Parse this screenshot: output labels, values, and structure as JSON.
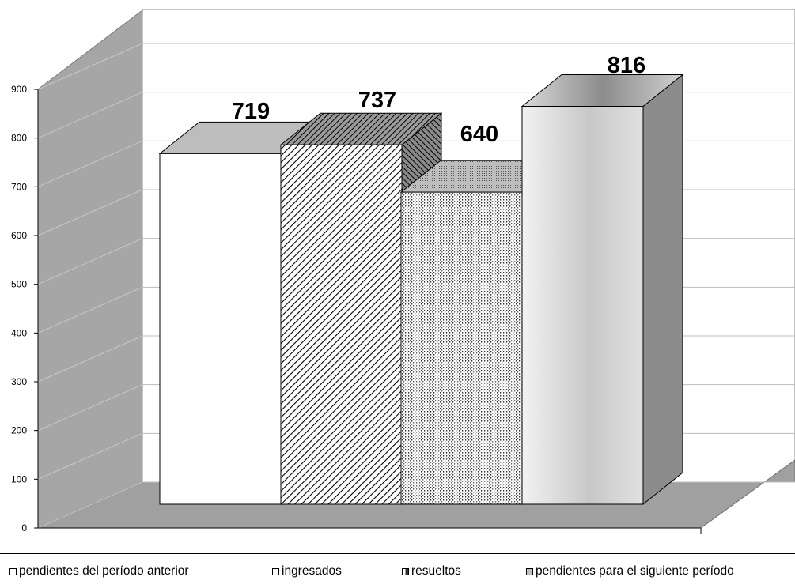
{
  "chart_data": {
    "type": "bar",
    "categories": [
      "pendientes del período anterior",
      "ingresados",
      "resueltos",
      "pendientes para el siguiente período"
    ],
    "values": [
      719,
      737,
      640,
      816
    ],
    "data_labels": [
      "719",
      "737",
      "640",
      "816"
    ],
    "ylim": [
      0,
      900
    ],
    "y_ticks": [
      "0",
      "100",
      "200",
      "300",
      "400",
      "500",
      "600",
      "700",
      "800",
      "900"
    ],
    "grid": true,
    "three_d": true,
    "legend_position": "bottom",
    "colors": {
      "wall": "#a6a6a6",
      "floor": "#a0a0a0",
      "bar_white": "#ffffff",
      "bar_dark": "#7f7f7f",
      "bar_dots": "#bfbfbf",
      "bar_light": "#e6e6e6",
      "side_light": "#8c8c8c"
    }
  },
  "legend": {
    "items": [
      {
        "label": "pendientes del período anterior",
        "swatch": "#ffffff"
      },
      {
        "label": "ingresados",
        "swatch": "#ffffff"
      },
      {
        "label": "resueltos",
        "swatch": "#8a8a8a"
      },
      {
        "label": "pendientes para el siguiente período",
        "swatch": "#bfbfbf"
      }
    ]
  }
}
